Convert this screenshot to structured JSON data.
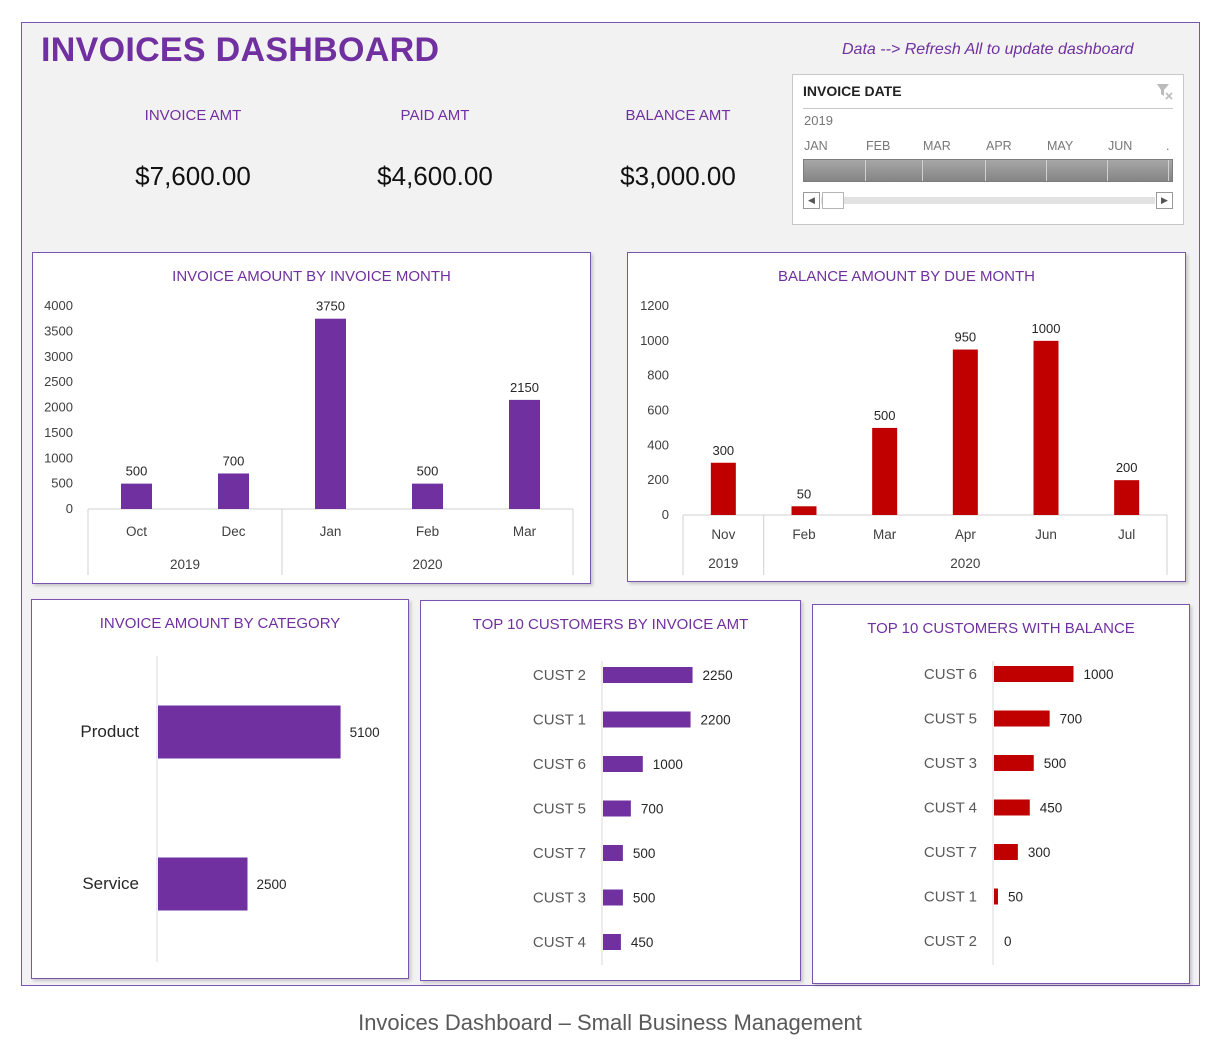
{
  "dashboard": {
    "title": "INVOICES DASHBOARD",
    "refresh_note": "Data --> Refresh All to update dashboard"
  },
  "kpis": [
    {
      "label": "INVOICE AMT",
      "value": "$7,600.00"
    },
    {
      "label": "PAID AMT",
      "value": "$4,600.00"
    },
    {
      "label": "BALANCE AMT",
      "value": "$3,000.00"
    }
  ],
  "slicer": {
    "title": "INVOICE DATE",
    "year": "2019",
    "months": [
      "JAN",
      "FEB",
      "MAR",
      "APR",
      "MAY",
      "JUN"
    ],
    "icon": "filter-clear-icon"
  },
  "colors": {
    "accent": "#7030a0",
    "bar_purple": "#7030a0",
    "bar_red": "#c00000"
  },
  "caption": "Invoices Dashboard – Small Business Management",
  "chart_data": [
    {
      "type": "bar",
      "title": "INVOICE AMOUNT BY INVOICE MONTH",
      "categories": [
        "Oct",
        "Dec",
        "Jan",
        "Feb",
        "Mar"
      ],
      "groups": [
        {
          "label": "2019",
          "count": 2
        },
        {
          "label": "2020",
          "count": 3
        }
      ],
      "values": [
        500,
        700,
        3750,
        500,
        2150
      ],
      "ylim": [
        0,
        4000
      ],
      "yticks": [
        0,
        500,
        1000,
        1500,
        2000,
        2500,
        3000,
        3500,
        4000
      ],
      "color": "#7030a0"
    },
    {
      "type": "bar",
      "title": "BALANCE AMOUNT BY DUE MONTH",
      "categories": [
        "Nov",
        "Feb",
        "Mar",
        "Apr",
        "Jun",
        "Jul"
      ],
      "groups": [
        {
          "label": "2019",
          "count": 1
        },
        {
          "label": "2020",
          "count": 5
        }
      ],
      "values": [
        300,
        50,
        500,
        950,
        1000,
        200
      ],
      "ylim": [
        0,
        1200
      ],
      "yticks": [
        0,
        200,
        400,
        600,
        800,
        1000,
        1200
      ],
      "color": "#c00000"
    },
    {
      "type": "bar",
      "orientation": "horizontal",
      "title": "INVOICE AMOUNT BY CATEGORY",
      "categories": [
        "Product",
        "Service"
      ],
      "values": [
        5100,
        2500
      ],
      "color": "#7030a0"
    },
    {
      "type": "bar",
      "orientation": "horizontal",
      "title": "TOP 10 CUSTOMERS BY INVOICE AMT",
      "categories": [
        "CUST 2",
        "CUST 1",
        "CUST 6",
        "CUST 5",
        "CUST 7",
        "CUST 3",
        "CUST 4"
      ],
      "values": [
        2250,
        2200,
        1000,
        700,
        500,
        500,
        450
      ],
      "color": "#7030a0"
    },
    {
      "type": "bar",
      "orientation": "horizontal",
      "title": "TOP 10 CUSTOMERS WITH BALANCE",
      "categories": [
        "CUST 6",
        "CUST 5",
        "CUST 3",
        "CUST 4",
        "CUST 7",
        "CUST 1",
        "CUST 2"
      ],
      "values": [
        1000,
        700,
        500,
        450,
        300,
        50,
        0
      ],
      "color": "#c00000"
    }
  ]
}
